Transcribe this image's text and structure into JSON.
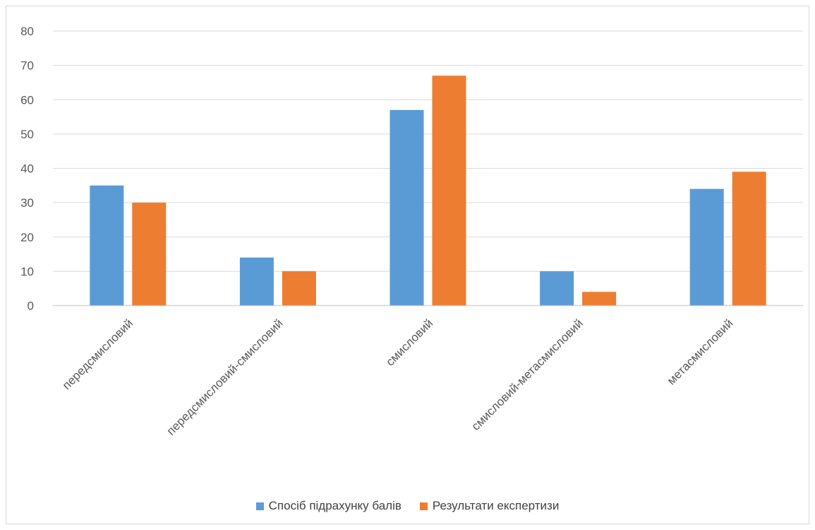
{
  "chart_data": {
    "type": "bar",
    "title": "",
    "xlabel": "",
    "ylabel": "",
    "categories": [
      "передсмисловий",
      "передсмисловий-смисловий",
      "смисловий",
      "смисловий-метасмисловий",
      "метасмисловий"
    ],
    "series": [
      {
        "name": "Спосіб підрахунку балів",
        "values": [
          35,
          14,
          57,
          10,
          34
        ],
        "color": "#5b9bd5"
      },
      {
        "name": "Результати експертизи",
        "values": [
          30,
          10,
          67,
          4,
          39
        ],
        "color": "#ed7d31"
      }
    ],
    "ylim": [
      0,
      80
    ],
    "yticks": [
      0,
      10,
      20,
      30,
      40,
      50,
      60,
      70,
      80
    ],
    "grid": true,
    "legend_position": "bottom"
  }
}
